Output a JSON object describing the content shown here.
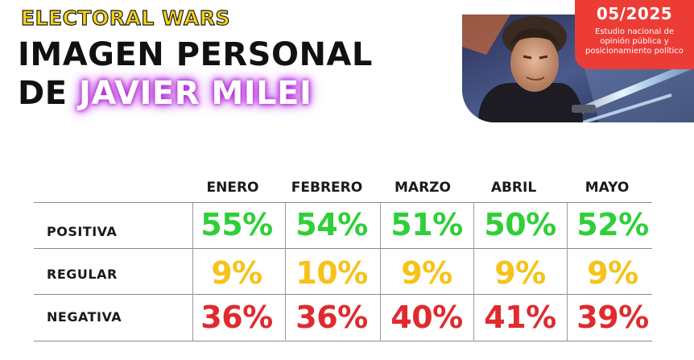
{
  "brand": "ELECTORAL WARS",
  "headline": {
    "line1": "IMAGEN PERSONAL",
    "prefix": "DE",
    "name": "JAVIER MILEI"
  },
  "date_box": {
    "date": "05/2025",
    "subtitle_lines": [
      "Estudio nacional de",
      "opinión pública y",
      "posicionamiento político"
    ]
  },
  "colors": {
    "positive": "#2fcf38",
    "regular": "#f7c219",
    "negative": "#e02a2e",
    "date_box": "#ec3c35",
    "name_glow": "#b62ad8"
  },
  "table": {
    "columns": [
      "ENERO",
      "FEBRERO",
      "MARZO",
      "ABRIL",
      "MAYO"
    ],
    "rows": [
      {
        "label": "POSITIVA",
        "values": [
          "55%",
          "54%",
          "51%",
          "50%",
          "52%"
        ],
        "tone": "positive"
      },
      {
        "label": "REGULAR",
        "values": [
          "9%",
          "10%",
          "9%",
          "9%",
          "9%"
        ],
        "tone": "regular"
      },
      {
        "label": "NEGATIVA",
        "values": [
          "36%",
          "36%",
          "40%",
          "41%",
          "39%"
        ],
        "tone": "negative"
      }
    ]
  }
}
